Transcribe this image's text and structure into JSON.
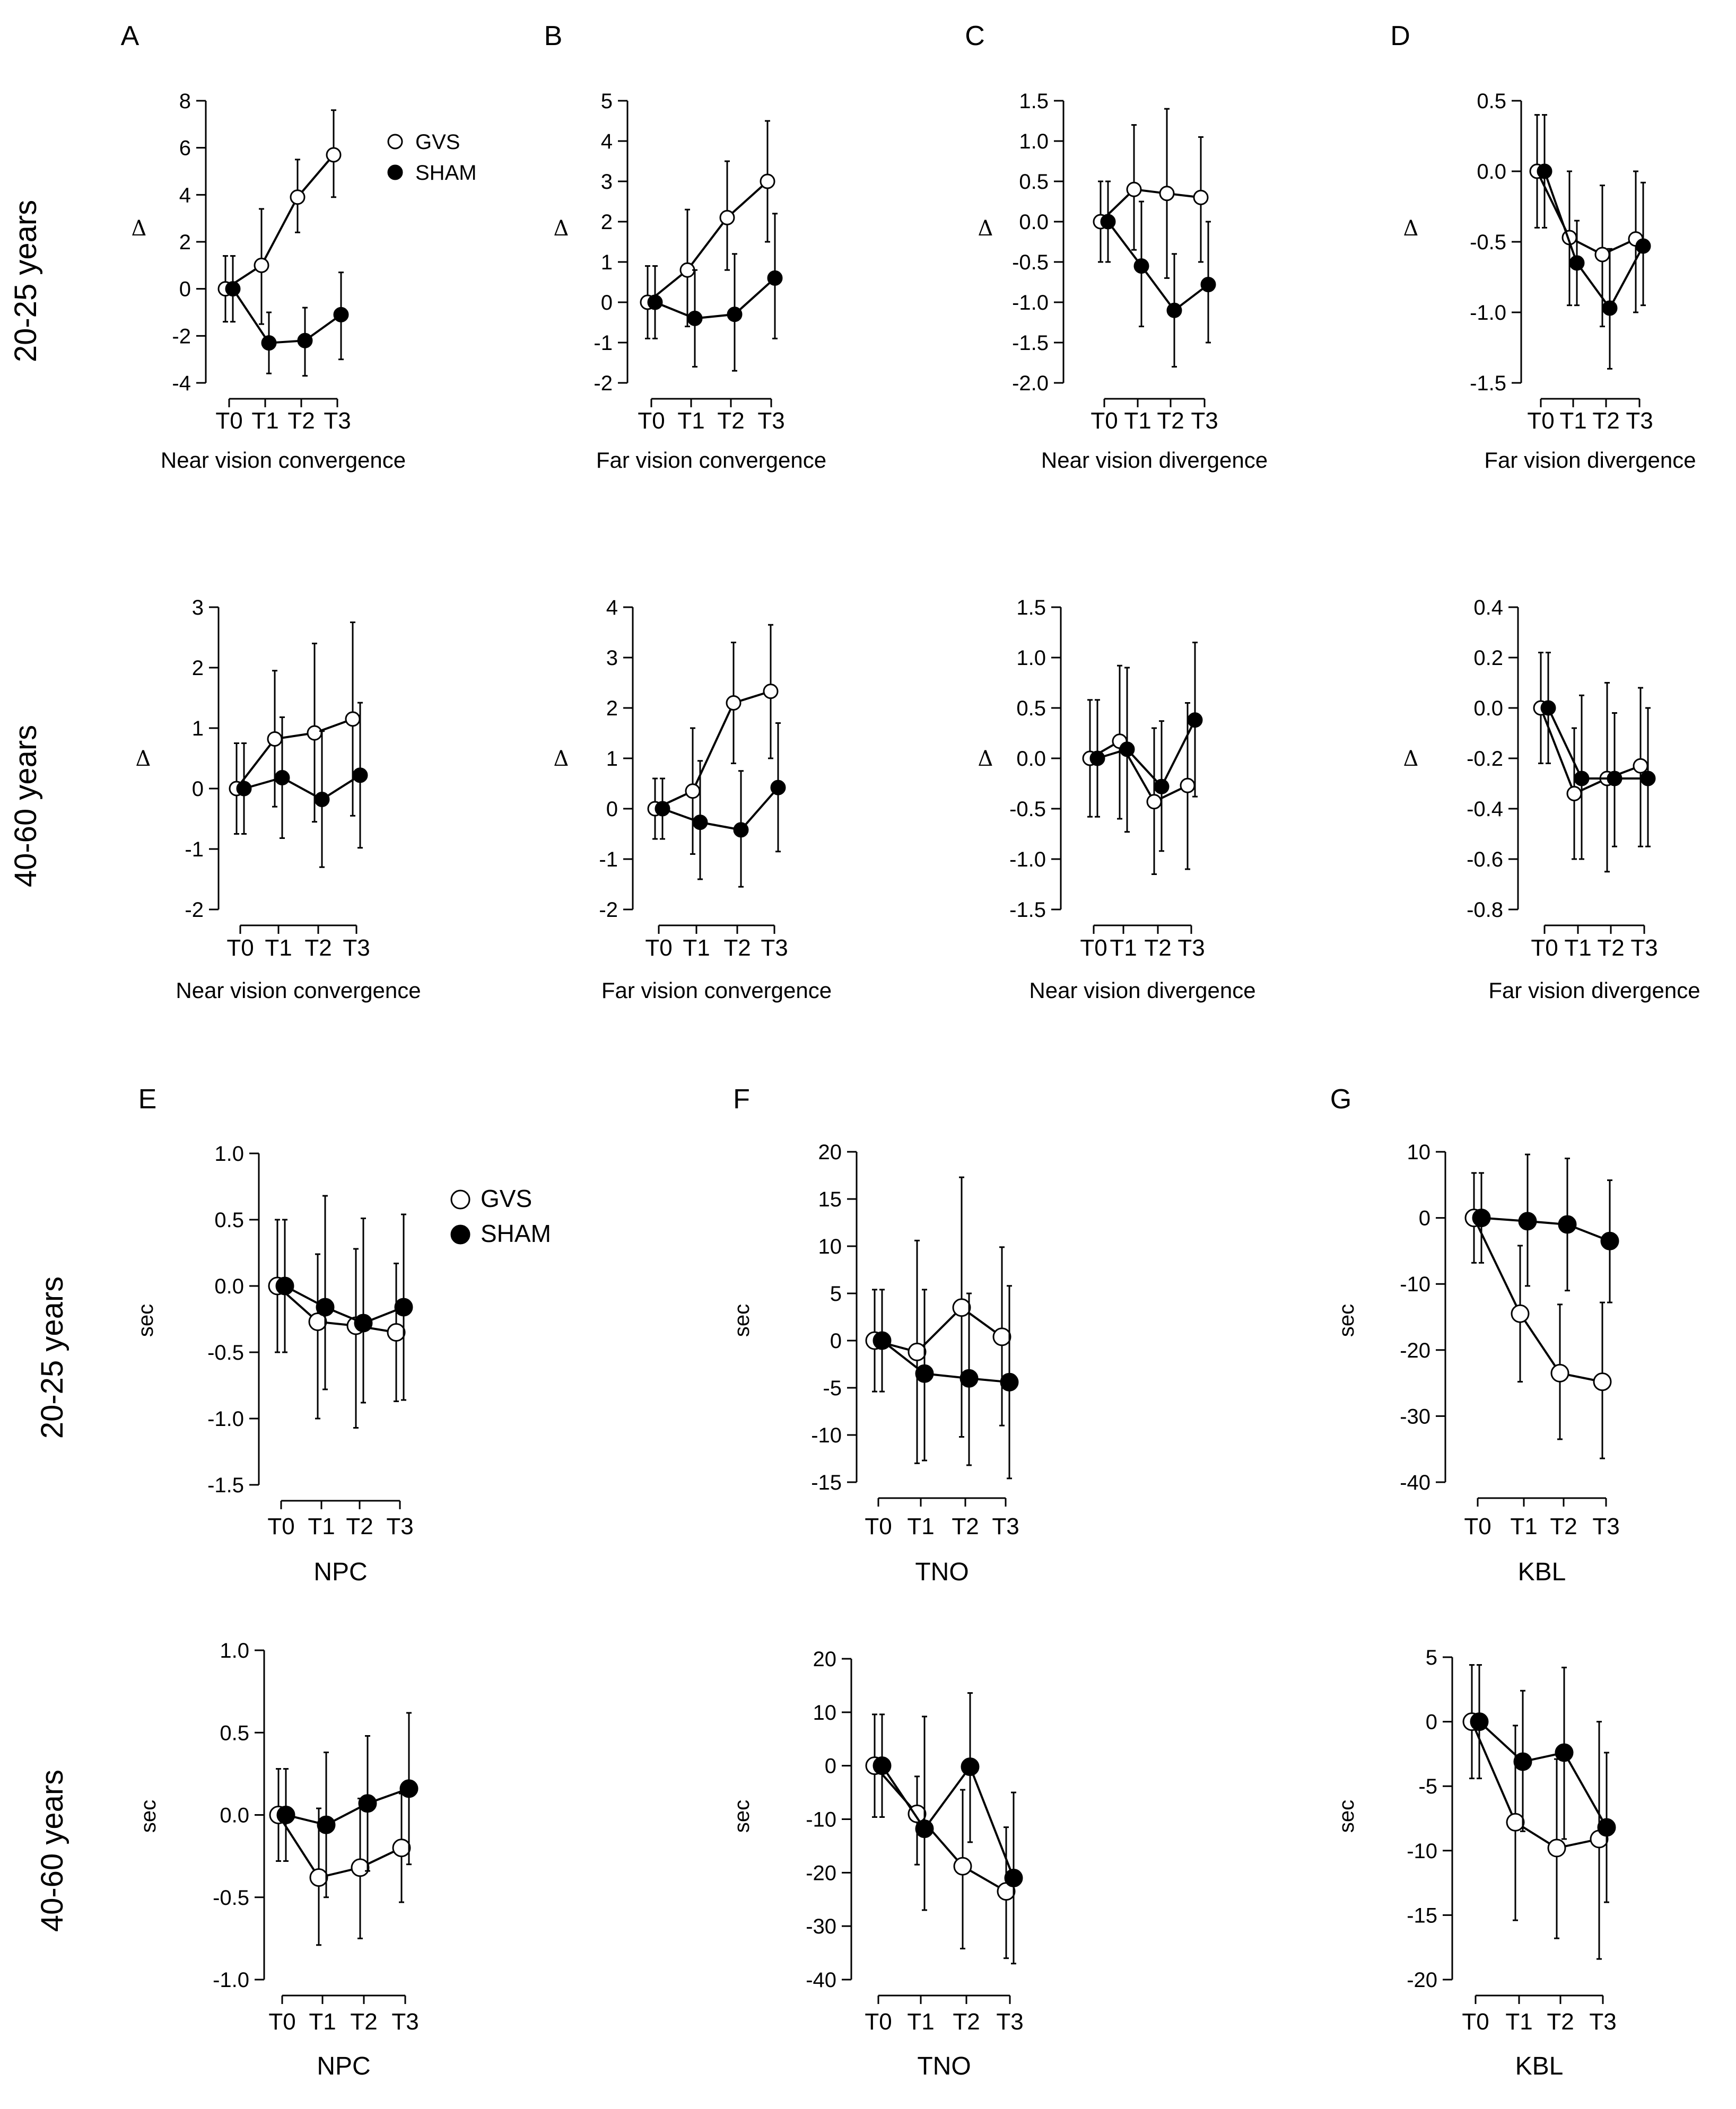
{
  "groups": {
    "young": "20-25 years",
    "older": "40-60 years"
  },
  "legend": {
    "gvs": "GVS",
    "sham": "SHAM"
  },
  "colors": {
    "gvs_fill": "#ffffff",
    "sham_fill": "#000000",
    "stroke": "#000000"
  },
  "chart_data": [
    {
      "id": "A-young",
      "panel": "A",
      "group": "20-25 years",
      "type": "line",
      "xlabel": "Near vision convergence",
      "ylabel": "Δ",
      "categories": [
        "T0",
        "T1",
        "T2",
        "T3"
      ],
      "yticks": [
        "-4",
        "-2",
        "0",
        "2",
        "4",
        "6",
        "8"
      ],
      "ylim": [
        -4,
        8
      ],
      "series": [
        {
          "name": "GVS",
          "values": [
            0,
            1.0,
            3.9,
            5.7
          ],
          "err_low": [
            -1.4,
            -1.5,
            2.4,
            3.9
          ],
          "err_high": [
            1.4,
            3.4,
            5.5,
            7.6
          ]
        },
        {
          "name": "SHAM",
          "values": [
            0,
            -2.3,
            -2.2,
            -1.1
          ],
          "err_low": [
            -1.4,
            -3.6,
            -3.7,
            -3.0
          ],
          "err_high": [
            1.4,
            -1.0,
            -0.8,
            0.7
          ]
        }
      ]
    },
    {
      "id": "B-young",
      "panel": "B",
      "group": "20-25 years",
      "type": "line",
      "xlabel": "Far vision convergence",
      "ylabel": "Δ",
      "categories": [
        "T0",
        "T1",
        "T2",
        "T3"
      ],
      "yticks": [
        "-2",
        "-1",
        "0",
        "1",
        "2",
        "3",
        "4",
        "5"
      ],
      "ylim": [
        -2,
        5
      ],
      "series": [
        {
          "name": "GVS",
          "values": [
            0,
            0.8,
            2.1,
            3.0
          ],
          "err_low": [
            -0.9,
            -0.6,
            0.8,
            1.5
          ],
          "err_high": [
            0.9,
            2.3,
            3.5,
            4.5
          ]
        },
        {
          "name": "SHAM",
          "values": [
            0,
            -0.4,
            -0.3,
            0.6
          ],
          "err_low": [
            -0.9,
            -1.6,
            -1.7,
            -0.9
          ],
          "err_high": [
            0.9,
            0.8,
            1.2,
            2.2
          ]
        }
      ]
    },
    {
      "id": "C-young",
      "panel": "C",
      "group": "20-25 years",
      "type": "line",
      "xlabel": "Near vision divergence",
      "ylabel": "Δ",
      "categories": [
        "T0",
        "T1",
        "T2",
        "T3"
      ],
      "yticks": [
        "-2.0",
        "-1.5",
        "-1.0",
        "-0.5",
        "0.0",
        "0.5",
        "1.0",
        "1.5"
      ],
      "ylim": [
        -2.0,
        1.5
      ],
      "series": [
        {
          "name": "GVS",
          "values": [
            0,
            0.4,
            0.35,
            0.3
          ],
          "err_low": [
            -0.5,
            -0.35,
            -0.7,
            -0.5
          ],
          "err_high": [
            0.5,
            1.2,
            1.4,
            1.05
          ]
        },
        {
          "name": "SHAM",
          "values": [
            0,
            -0.55,
            -1.1,
            -0.78
          ],
          "err_low": [
            -0.5,
            -1.3,
            -1.8,
            -1.5
          ],
          "err_high": [
            0.5,
            0.25,
            -0.4,
            0.0
          ]
        }
      ]
    },
    {
      "id": "D-young",
      "panel": "D",
      "group": "20-25 years",
      "type": "line",
      "xlabel": "Far vision divergence",
      "ylabel": "Δ",
      "categories": [
        "T0",
        "T1",
        "T2",
        "T3"
      ],
      "yticks": [
        "-1.5",
        "-1.0",
        "-0.5",
        "0.0",
        "0.5"
      ],
      "ylim": [
        -1.5,
        0.5
      ],
      "series": [
        {
          "name": "GVS",
          "values": [
            0,
            -0.47,
            -0.59,
            -0.48
          ],
          "err_low": [
            -0.4,
            -0.95,
            -1.1,
            -1.0
          ],
          "err_high": [
            0.4,
            0.0,
            -0.1,
            0.0
          ]
        },
        {
          "name": "SHAM",
          "values": [
            0,
            -0.65,
            -0.97,
            -0.53
          ],
          "err_low": [
            -0.4,
            -0.95,
            -1.4,
            -0.95
          ],
          "err_high": [
            0.4,
            -0.35,
            -0.55,
            -0.08
          ]
        }
      ]
    },
    {
      "id": "A-older",
      "panel": "",
      "group": "40-60 years",
      "type": "line",
      "xlabel": "Near vision convergence",
      "ylabel": "Δ",
      "categories": [
        "T0",
        "T1",
        "T2",
        "T3"
      ],
      "yticks": [
        "-2",
        "-1",
        "0",
        "1",
        "2",
        "3"
      ],
      "ylim": [
        -2,
        3
      ],
      "series": [
        {
          "name": "GVS",
          "values": [
            0,
            0.82,
            0.92,
            1.15
          ],
          "err_low": [
            -0.75,
            -0.3,
            -0.55,
            -0.45
          ],
          "err_high": [
            0.75,
            1.95,
            2.4,
            2.75
          ]
        },
        {
          "name": "SHAM",
          "values": [
            0,
            0.18,
            -0.18,
            0.22
          ],
          "err_low": [
            -0.75,
            -0.82,
            -1.3,
            -0.98
          ],
          "err_high": [
            0.75,
            1.18,
            0.95,
            1.42
          ]
        }
      ]
    },
    {
      "id": "B-older",
      "panel": "",
      "group": "40-60 years",
      "type": "line",
      "xlabel": "Far vision convergence",
      "ylabel": "Δ",
      "categories": [
        "T0",
        "T1",
        "T2",
        "T3"
      ],
      "yticks": [
        "-2",
        "-1",
        "0",
        "1",
        "2",
        "3",
        "4"
      ],
      "ylim": [
        -2,
        4
      ],
      "series": [
        {
          "name": "GVS",
          "values": [
            0,
            0.35,
            2.1,
            2.33
          ],
          "err_low": [
            -0.6,
            -0.9,
            0.9,
            1.0
          ],
          "err_high": [
            0.6,
            1.6,
            3.3,
            3.65
          ]
        },
        {
          "name": "SHAM",
          "values": [
            0,
            -0.27,
            -0.42,
            0.42
          ],
          "err_low": [
            -0.6,
            -1.4,
            -1.55,
            -0.85
          ],
          "err_high": [
            0.6,
            0.95,
            0.75,
            1.7
          ]
        }
      ]
    },
    {
      "id": "C-older",
      "panel": "",
      "group": "40-60 years",
      "type": "line",
      "xlabel": "Near vision divergence",
      "ylabel": "Δ",
      "categories": [
        "T0",
        "T1",
        "T2",
        "T3"
      ],
      "yticks": [
        "-1.5",
        "-1.0",
        "-0.5",
        "0.0",
        "0.5",
        "1.0",
        "1.5"
      ],
      "ylim": [
        -1.5,
        1.5
      ],
      "series": [
        {
          "name": "GVS",
          "values": [
            0,
            0.17,
            -0.43,
            -0.27
          ],
          "err_low": [
            -0.58,
            -0.6,
            -1.15,
            -1.1
          ],
          "err_high": [
            0.58,
            0.92,
            0.3,
            0.55
          ]
        },
        {
          "name": "SHAM",
          "values": [
            0,
            0.09,
            -0.28,
            0.38
          ],
          "err_low": [
            -0.58,
            -0.73,
            -0.92,
            -0.38
          ],
          "err_high": [
            0.58,
            0.9,
            0.37,
            1.15
          ]
        }
      ]
    },
    {
      "id": "D-older",
      "panel": "",
      "group": "40-60 years",
      "type": "line",
      "xlabel": "Far vision divergence",
      "ylabel": "Δ",
      "categories": [
        "T0",
        "T1",
        "T2",
        "T3"
      ],
      "yticks": [
        "-0.8",
        "-0.6",
        "-0.4",
        "-0.2",
        "0.0",
        "0.2",
        "0.4"
      ],
      "ylim": [
        -0.8,
        0.4
      ],
      "series": [
        {
          "name": "GVS",
          "values": [
            0,
            -0.34,
            -0.28,
            -0.23
          ],
          "err_low": [
            -0.22,
            -0.6,
            -0.65,
            -0.55
          ],
          "err_high": [
            0.22,
            -0.08,
            0.1,
            0.08
          ]
        },
        {
          "name": "SHAM",
          "values": [
            0,
            -0.28,
            -0.28,
            -0.28
          ],
          "err_low": [
            -0.22,
            -0.6,
            -0.55,
            -0.55
          ],
          "err_high": [
            0.22,
            0.05,
            -0.02,
            0.0
          ]
        }
      ]
    },
    {
      "id": "E-young",
      "panel": "E",
      "group": "20-25 years",
      "type": "line",
      "xlabel": "NPC",
      "ylabel": "sec",
      "categories": [
        "T0",
        "T1",
        "T2",
        "T3"
      ],
      "yticks": [
        "-1.5",
        "-1.0",
        "-0.5",
        "0.0",
        "0.5",
        "1.0"
      ],
      "ylim": [
        -1.5,
        1.0
      ],
      "series": [
        {
          "name": "GVS",
          "values": [
            0,
            -0.27,
            -0.3,
            -0.35
          ],
          "err_low": [
            -0.5,
            -1.0,
            -1.07,
            -0.87
          ],
          "err_high": [
            0.5,
            0.24,
            0.28,
            0.17
          ]
        },
        {
          "name": "SHAM",
          "values": [
            0,
            -0.16,
            -0.28,
            -0.16
          ],
          "err_low": [
            -0.5,
            -0.78,
            -0.88,
            -0.86
          ],
          "err_high": [
            0.5,
            0.68,
            0.51,
            0.54
          ]
        }
      ]
    },
    {
      "id": "F-young",
      "panel": "F",
      "group": "20-25 years",
      "type": "line",
      "xlabel": "TNO",
      "ylabel": "sec",
      "categories": [
        "T0",
        "T1",
        "T2",
        "T3"
      ],
      "yticks": [
        "-15",
        "-10",
        "-5",
        "0",
        "5",
        "10",
        "15",
        "20"
      ],
      "ylim": [
        -15,
        20
      ],
      "series": [
        {
          "name": "GVS",
          "values": [
            0,
            -1.2,
            3.5,
            0.4
          ],
          "err_low": [
            -5.4,
            -13.0,
            -10.2,
            -9.0
          ],
          "err_high": [
            5.4,
            10.6,
            17.3,
            9.9
          ]
        },
        {
          "name": "SHAM",
          "values": [
            0,
            -3.5,
            -4.0,
            -4.4
          ],
          "err_low": [
            -5.4,
            -12.7,
            -13.2,
            -14.6
          ],
          "err_high": [
            5.4,
            5.4,
            5.0,
            5.8
          ]
        }
      ]
    },
    {
      "id": "G-young",
      "panel": "G",
      "group": "20-25 years",
      "type": "line",
      "xlabel": "KBL",
      "ylabel": "sec",
      "categories": [
        "T0",
        "T1",
        "T2",
        "T3"
      ],
      "yticks": [
        "-40",
        "-30",
        "-20",
        "-10",
        "0",
        "10"
      ],
      "ylim": [
        -40,
        10
      ],
      "series": [
        {
          "name": "GVS",
          "values": [
            0,
            -14.5,
            -23.5,
            -24.8
          ],
          "err_low": [
            -6.8,
            -24.8,
            -33.5,
            -36.4
          ],
          "err_high": [
            6.8,
            -4.2,
            -13.1,
            -12.8
          ]
        },
        {
          "name": "SHAM",
          "values": [
            0,
            -0.5,
            -1.0,
            -3.5
          ],
          "err_low": [
            -6.8,
            -10.3,
            -11.0,
            -12.8
          ],
          "err_high": [
            6.8,
            9.6,
            9.0,
            5.7
          ]
        }
      ]
    },
    {
      "id": "E-older",
      "panel": "",
      "group": "40-60 years",
      "type": "line",
      "xlabel": "NPC",
      "ylabel": "sec",
      "categories": [
        "T0",
        "T1",
        "T2",
        "T3"
      ],
      "yticks": [
        "-1.0",
        "-0.5",
        "0.0",
        "0.5",
        "1.0"
      ],
      "ylim": [
        -1.0,
        1.0
      ],
      "series": [
        {
          "name": "GVS",
          "values": [
            0,
            -0.38,
            -0.32,
            -0.2
          ],
          "err_low": [
            -0.28,
            -0.79,
            -0.75,
            -0.53
          ],
          "err_high": [
            0.28,
            0.04,
            0.1,
            0.13
          ]
        },
        {
          "name": "SHAM",
          "values": [
            0,
            -0.06,
            0.07,
            0.16
          ],
          "err_low": [
            -0.28,
            -0.5,
            -0.34,
            -0.3
          ],
          "err_high": [
            0.28,
            0.38,
            0.48,
            0.62
          ]
        }
      ]
    },
    {
      "id": "F-older",
      "panel": "",
      "group": "40-60 years",
      "type": "line",
      "xlabel": "TNO",
      "ylabel": "sec",
      "categories": [
        "T0",
        "T1",
        "T2",
        "T3"
      ],
      "yticks": [
        "-40",
        "-30",
        "-20",
        "-10",
        "0",
        "10",
        "20"
      ],
      "ylim": [
        -40,
        20
      ],
      "series": [
        {
          "name": "GVS",
          "values": [
            0,
            -9.0,
            -18.8,
            -23.5
          ],
          "err_low": [
            -9.6,
            -18.5,
            -34.2,
            -36.0
          ],
          "err_high": [
            9.6,
            -2.0,
            -4.5,
            -11.5
          ]
        },
        {
          "name": "SHAM",
          "values": [
            0,
            -11.8,
            -0.2,
            -21.0
          ],
          "err_low": [
            -9.6,
            -27.0,
            -14.3,
            -37.0
          ],
          "err_high": [
            9.6,
            9.2,
            13.6,
            -5.0
          ]
        }
      ]
    },
    {
      "id": "G-older",
      "panel": "",
      "group": "40-60 years",
      "type": "line",
      "xlabel": "KBL",
      "ylabel": "sec",
      "categories": [
        "T0",
        "T1",
        "T2",
        "T3"
      ],
      "yticks": [
        "-20",
        "-15",
        "-10",
        "-5",
        "0",
        "5"
      ],
      "ylim": [
        -20,
        5
      ],
      "series": [
        {
          "name": "GVS",
          "values": [
            0,
            -7.8,
            -9.8,
            -9.1
          ],
          "err_low": [
            -4.4,
            -15.4,
            -16.8,
            -18.4
          ],
          "err_high": [
            4.4,
            -0.3,
            -2.9,
            0.0
          ]
        },
        {
          "name": "SHAM",
          "values": [
            0,
            -3.1,
            -2.4,
            -8.2
          ],
          "err_low": [
            -4.4,
            -8.5,
            -9.1,
            -14.0
          ],
          "err_high": [
            4.4,
            2.4,
            4.2,
            -2.4
          ]
        }
      ]
    }
  ]
}
